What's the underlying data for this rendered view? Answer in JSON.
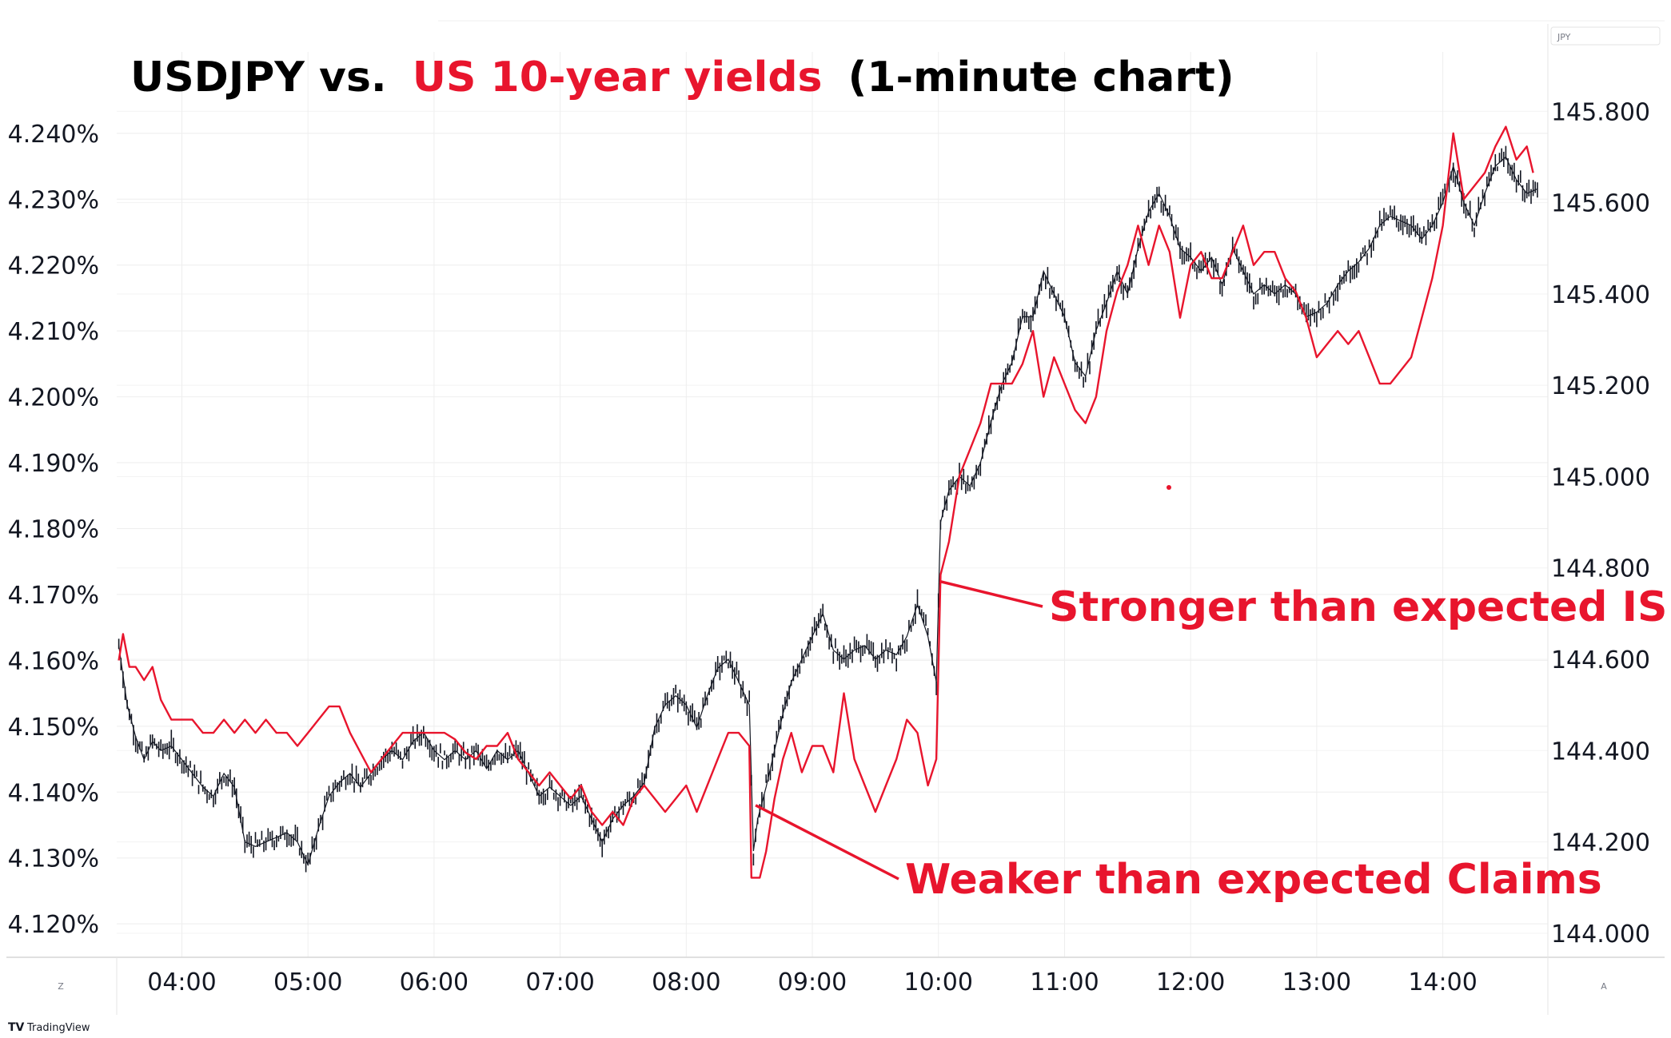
{
  "title": {
    "part1": "USDJPY vs.",
    "part2": "US 10-year yields",
    "part3": "(1-minute chart)"
  },
  "colors": {
    "usdjpy": "#131722",
    "yield": "#e8152d",
    "annotation": "#e8152d",
    "grid": "#eeeeee"
  },
  "currency_badge": "JPY",
  "corner_left": "Z",
  "corner_right": "A",
  "brand": "TradingView",
  "annotations": [
    {
      "text": "Stronger than expected ISM",
      "time": 600.5,
      "value": 4.172
    },
    {
      "text": "Weaker than expected Claims",
      "time": 513,
      "value": 4.138
    }
  ],
  "chart_data": {
    "type": "line",
    "x_axis": {
      "ticks": [
        "04:00",
        "05:00",
        "06:00",
        "07:00",
        "08:00",
        "09:00",
        "10:00",
        "11:00",
        "12:00",
        "13:00",
        "14:00"
      ]
    },
    "y_left": {
      "ticks": [
        "4.120%",
        "4.130%",
        "4.140%",
        "4.150%",
        "4.160%",
        "4.170%",
        "4.180%",
        "4.190%",
        "4.200%",
        "4.210%",
        "4.220%",
        "4.230%",
        "4.240%"
      ],
      "range": [
        4.1165,
        4.2475
      ]
    },
    "y_right": {
      "ticks": [
        "144.000",
        "144.200",
        "144.400",
        "144.600",
        "144.800",
        "145.000",
        "145.200",
        "145.400",
        "145.600",
        "145.800"
      ],
      "range": [
        143.97,
        145.86
      ]
    },
    "x_range": [
      "03:29",
      "14:50"
    ],
    "grid": true,
    "series": [
      {
        "axis": "right",
        "style": "ohlc-bars",
        "points": [
          [
            "03:30",
            144.63
          ],
          [
            "03:34",
            144.5
          ],
          [
            "03:38",
            144.43
          ],
          [
            "03:42",
            144.38
          ],
          [
            "03:46",
            144.42
          ],
          [
            "03:50",
            144.4
          ],
          [
            "03:55",
            144.41
          ],
          [
            "04:00",
            144.38
          ],
          [
            "04:05",
            144.35
          ],
          [
            "04:10",
            144.32
          ],
          [
            "04:15",
            144.3
          ],
          [
            "04:20",
            144.35
          ],
          [
            "04:25",
            144.32
          ],
          [
            "04:30",
            144.2
          ],
          [
            "04:35",
            144.19
          ],
          [
            "04:40",
            144.2
          ],
          [
            "04:45",
            144.21
          ],
          [
            "04:50",
            144.22
          ],
          [
            "04:55",
            144.2
          ],
          [
            "05:00",
            144.15
          ],
          [
            "05:05",
            144.23
          ],
          [
            "05:10",
            144.3
          ],
          [
            "05:15",
            144.33
          ],
          [
            "05:20",
            144.35
          ],
          [
            "05:25",
            144.32
          ],
          [
            "05:30",
            144.35
          ],
          [
            "05:35",
            144.38
          ],
          [
            "05:40",
            144.4
          ],
          [
            "05:45",
            144.38
          ],
          [
            "05:50",
            144.42
          ],
          [
            "05:55",
            144.44
          ],
          [
            "06:00",
            144.4
          ],
          [
            "06:05",
            144.38
          ],
          [
            "06:10",
            144.4
          ],
          [
            "06:15",
            144.38
          ],
          [
            "06:20",
            144.4
          ],
          [
            "06:25",
            144.36
          ],
          [
            "06:30",
            144.4
          ],
          [
            "06:35",
            144.38
          ],
          [
            "06:40",
            144.4
          ],
          [
            "06:45",
            144.35
          ],
          [
            "06:50",
            144.3
          ],
          [
            "06:55",
            144.32
          ],
          [
            "07:00",
            144.3
          ],
          [
            "07:05",
            144.28
          ],
          [
            "07:10",
            144.3
          ],
          [
            "07:15",
            144.25
          ],
          [
            "07:20",
            144.2
          ],
          [
            "07:25",
            144.25
          ],
          [
            "07:30",
            144.28
          ],
          [
            "07:35",
            144.3
          ],
          [
            "07:40",
            144.33
          ],
          [
            "07:45",
            144.45
          ],
          [
            "07:50",
            144.5
          ],
          [
            "07:55",
            144.52
          ],
          [
            "08:00",
            144.5
          ],
          [
            "08:05",
            144.45
          ],
          [
            "08:10",
            144.52
          ],
          [
            "08:15",
            144.58
          ],
          [
            "08:20",
            144.6
          ],
          [
            "08:25",
            144.55
          ],
          [
            "08:30",
            144.5
          ],
          [
            "08:32",
            144.18
          ],
          [
            "08:34",
            144.25
          ],
          [
            "08:38",
            144.32
          ],
          [
            "08:42",
            144.4
          ],
          [
            "08:46",
            144.48
          ],
          [
            "08:50",
            144.55
          ],
          [
            "08:55",
            144.6
          ],
          [
            "09:00",
            144.65
          ],
          [
            "09:05",
            144.7
          ],
          [
            "09:10",
            144.62
          ],
          [
            "09:15",
            144.6
          ],
          [
            "09:20",
            144.62
          ],
          [
            "09:25",
            144.63
          ],
          [
            "09:30",
            144.6
          ],
          [
            "09:35",
            144.62
          ],
          [
            "09:40",
            144.61
          ],
          [
            "09:45",
            144.65
          ],
          [
            "09:50",
            144.72
          ],
          [
            "09:55",
            144.65
          ],
          [
            "09:59",
            144.55
          ],
          [
            "10:01",
            144.9
          ],
          [
            "10:05",
            144.97
          ],
          [
            "10:10",
            145.0
          ],
          [
            "10:15",
            144.98
          ],
          [
            "10:20",
            145.03
          ],
          [
            "10:25",
            145.12
          ],
          [
            "10:30",
            145.2
          ],
          [
            "10:35",
            145.25
          ],
          [
            "10:40",
            145.35
          ],
          [
            "10:45",
            145.35
          ],
          [
            "10:50",
            145.45
          ],
          [
            "10:55",
            145.4
          ],
          [
            "11:00",
            145.35
          ],
          [
            "11:05",
            145.25
          ],
          [
            "11:10",
            145.22
          ],
          [
            "11:15",
            145.32
          ],
          [
            "11:20",
            145.38
          ],
          [
            "11:25",
            145.45
          ],
          [
            "11:30",
            145.4
          ],
          [
            "11:35",
            145.5
          ],
          [
            "11:40",
            145.58
          ],
          [
            "11:45",
            145.62
          ],
          [
            "11:50",
            145.57
          ],
          [
            "11:55",
            145.5
          ],
          [
            "12:00",
            145.48
          ],
          [
            "12:05",
            145.45
          ],
          [
            "12:10",
            145.48
          ],
          [
            "12:15",
            145.42
          ],
          [
            "12:20",
            145.5
          ],
          [
            "12:25",
            145.45
          ],
          [
            "12:30",
            145.4
          ],
          [
            "12:35",
            145.42
          ],
          [
            "12:40",
            145.4
          ],
          [
            "12:45",
            145.42
          ],
          [
            "12:50",
            145.4
          ],
          [
            "12:55",
            145.35
          ],
          [
            "13:00",
            145.36
          ],
          [
            "13:05",
            145.38
          ],
          [
            "13:10",
            145.42
          ],
          [
            "13:15",
            145.45
          ],
          [
            "13:20",
            145.47
          ],
          [
            "13:25",
            145.5
          ],
          [
            "13:30",
            145.55
          ],
          [
            "13:35",
            145.57
          ],
          [
            "13:40",
            145.56
          ],
          [
            "13:45",
            145.55
          ],
          [
            "13:50",
            145.52
          ],
          [
            "13:55",
            145.55
          ],
          [
            "14:00",
            145.6
          ],
          [
            "14:05",
            145.68
          ],
          [
            "14:10",
            145.6
          ],
          [
            "14:15",
            145.55
          ],
          [
            "14:20",
            145.62
          ],
          [
            "14:25",
            145.68
          ],
          [
            "14:30",
            145.7
          ],
          [
            "14:35",
            145.65
          ],
          [
            "14:40",
            145.62
          ],
          [
            "14:45",
            145.63
          ]
        ]
      },
      {
        "axis": "left",
        "style": "line",
        "points": [
          [
            "03:30",
            4.16
          ],
          [
            "03:32",
            4.164
          ],
          [
            "03:35",
            4.159
          ],
          [
            "03:38",
            4.159
          ],
          [
            "03:42",
            4.157
          ],
          [
            "03:46",
            4.159
          ],
          [
            "03:50",
            4.154
          ],
          [
            "03:55",
            4.151
          ],
          [
            "04:00",
            4.151
          ],
          [
            "04:05",
            4.151
          ],
          [
            "04:10",
            4.149
          ],
          [
            "04:15",
            4.149
          ],
          [
            "04:20",
            4.151
          ],
          [
            "04:25",
            4.149
          ],
          [
            "04:30",
            4.151
          ],
          [
            "04:35",
            4.149
          ],
          [
            "04:40",
            4.151
          ],
          [
            "04:45",
            4.149
          ],
          [
            "04:50",
            4.149
          ],
          [
            "04:55",
            4.147
          ],
          [
            "05:00",
            4.149
          ],
          [
            "05:05",
            4.151
          ],
          [
            "05:10",
            4.153
          ],
          [
            "05:15",
            4.153
          ],
          [
            "05:20",
            4.149
          ],
          [
            "05:25",
            4.146
          ],
          [
            "05:30",
            4.143
          ],
          [
            "05:35",
            4.145
          ],
          [
            "05:40",
            4.147
          ],
          [
            "05:45",
            4.149
          ],
          [
            "05:50",
            4.149
          ],
          [
            "05:55",
            4.149
          ],
          [
            "06:00",
            4.149
          ],
          [
            "06:05",
            4.149
          ],
          [
            "06:10",
            4.148
          ],
          [
            "06:15",
            4.146
          ],
          [
            "06:20",
            4.145
          ],
          [
            "06:25",
            4.147
          ],
          [
            "06:30",
            4.147
          ],
          [
            "06:35",
            4.149
          ],
          [
            "06:40",
            4.145
          ],
          [
            "06:45",
            4.143
          ],
          [
            "06:50",
            4.141
          ],
          [
            "06:55",
            4.143
          ],
          [
            "07:00",
            4.141
          ],
          [
            "07:05",
            4.139
          ],
          [
            "07:10",
            4.141
          ],
          [
            "07:15",
            4.137
          ],
          [
            "07:20",
            4.135
          ],
          [
            "07:25",
            4.137
          ],
          [
            "07:30",
            4.135
          ],
          [
            "07:35",
            4.139
          ],
          [
            "07:40",
            4.141
          ],
          [
            "07:45",
            4.139
          ],
          [
            "07:50",
            4.137
          ],
          [
            "07:55",
            4.139
          ],
          [
            "08:00",
            4.141
          ],
          [
            "08:05",
            4.137
          ],
          [
            "08:10",
            4.141
          ],
          [
            "08:15",
            4.145
          ],
          [
            "08:20",
            4.149
          ],
          [
            "08:25",
            4.149
          ],
          [
            "08:30",
            4.147
          ],
          [
            "08:31",
            4.127
          ],
          [
            "08:35",
            4.127
          ],
          [
            "08:38",
            4.131
          ],
          [
            "08:42",
            4.139
          ],
          [
            "08:46",
            4.145
          ],
          [
            "08:50",
            4.149
          ],
          [
            "08:55",
            4.143
          ],
          [
            "09:00",
            4.147
          ],
          [
            "09:05",
            4.147
          ],
          [
            "09:10",
            4.143
          ],
          [
            "09:15",
            4.155
          ],
          [
            "09:20",
            4.145
          ],
          [
            "09:25",
            4.141
          ],
          [
            "09:30",
            4.137
          ],
          [
            "09:35",
            4.141
          ],
          [
            "09:40",
            4.145
          ],
          [
            "09:45",
            4.151
          ],
          [
            "09:50",
            4.149
          ],
          [
            "09:55",
            4.141
          ],
          [
            "09:59",
            4.145
          ],
          [
            "10:01",
            4.173
          ],
          [
            "10:05",
            4.178
          ],
          [
            "10:10",
            4.188
          ],
          [
            "10:15",
            4.192
          ],
          [
            "10:20",
            4.196
          ],
          [
            "10:25",
            4.202
          ],
          [
            "10:30",
            4.202
          ],
          [
            "10:35",
            4.202
          ],
          [
            "10:40",
            4.205
          ],
          [
            "10:45",
            4.21
          ],
          [
            "10:50",
            4.2
          ],
          [
            "10:55",
            4.206
          ],
          [
            "11:00",
            4.202
          ],
          [
            "11:05",
            4.198
          ],
          [
            "11:10",
            4.196
          ],
          [
            "11:15",
            4.2
          ],
          [
            "11:20",
            4.21
          ],
          [
            "11:25",
            4.216
          ],
          [
            "11:30",
            4.22
          ],
          [
            "11:35",
            4.226
          ],
          [
            "11:40",
            4.22
          ],
          [
            "11:45",
            4.226
          ],
          [
            "11:50",
            4.222
          ],
          [
            "11:55",
            4.212
          ],
          [
            "12:00",
            4.22
          ],
          [
            "12:05",
            4.222
          ],
          [
            "12:10",
            4.218
          ],
          [
            "12:15",
            4.218
          ],
          [
            "12:20",
            4.222
          ],
          [
            "12:25",
            4.226
          ],
          [
            "12:30",
            4.22
          ],
          [
            "12:35",
            4.222
          ],
          [
            "12:40",
            4.222
          ],
          [
            "12:45",
            4.218
          ],
          [
            "12:50",
            4.216
          ],
          [
            "12:55",
            4.212
          ],
          [
            "13:00",
            4.206
          ],
          [
            "13:05",
            4.208
          ],
          [
            "13:10",
            4.21
          ],
          [
            "13:15",
            4.208
          ],
          [
            "13:20",
            4.21
          ],
          [
            "13:25",
            4.206
          ],
          [
            "13:30",
            4.202
          ],
          [
            "13:35",
            4.202
          ],
          [
            "13:40",
            4.204
          ],
          [
            "13:45",
            4.206
          ],
          [
            "13:50",
            4.212
          ],
          [
            "13:55",
            4.218
          ],
          [
            "14:00",
            4.226
          ],
          [
            "14:05",
            4.24
          ],
          [
            "14:10",
            4.23
          ],
          [
            "14:15",
            4.232
          ],
          [
            "14:20",
            4.234
          ],
          [
            "14:25",
            4.238
          ],
          [
            "14:30",
            4.241
          ],
          [
            "14:35",
            4.236
          ],
          [
            "14:40",
            4.238
          ],
          [
            "14:43",
            4.234
          ]
        ]
      }
    ]
  }
}
